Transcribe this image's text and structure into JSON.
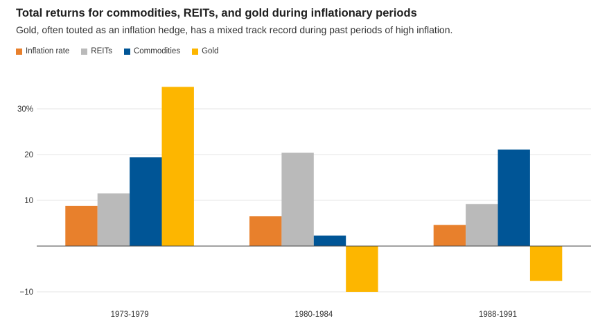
{
  "chart_data": {
    "type": "bar",
    "title": "Total returns for commodities, REITs, and gold during inflationary periods",
    "subtitle": "Gold, often touted as an inflation hedge, has a mixed track record during past periods of high inflation.",
    "xlabel": "",
    "ylabel": "",
    "categories": [
      "1973-1979",
      "1980-1984",
      "1988-1991"
    ],
    "series": [
      {
        "name": "Inflation rate",
        "color": "#e8802c",
        "values": [
          8.8,
          6.5,
          4.6
        ]
      },
      {
        "name": "REITs",
        "color": "#bababa",
        "values": [
          11.5,
          20.4,
          9.2
        ]
      },
      {
        "name": "Commodities",
        "color": "#005596",
        "values": [
          19.4,
          2.3,
          21.1
        ]
      },
      {
        "name": "Gold",
        "color": "#fdb600",
        "values": [
          34.8,
          -10.0,
          -7.6
        ]
      }
    ],
    "ylim": [
      -10,
      35
    ],
    "yticks": [
      {
        "value": 30,
        "label": "30%"
      },
      {
        "value": 20,
        "label": "20"
      },
      {
        "value": 10,
        "label": "10"
      },
      {
        "value": -10,
        "label": "−10"
      }
    ],
    "grid": true,
    "legend_position": "top-left"
  }
}
